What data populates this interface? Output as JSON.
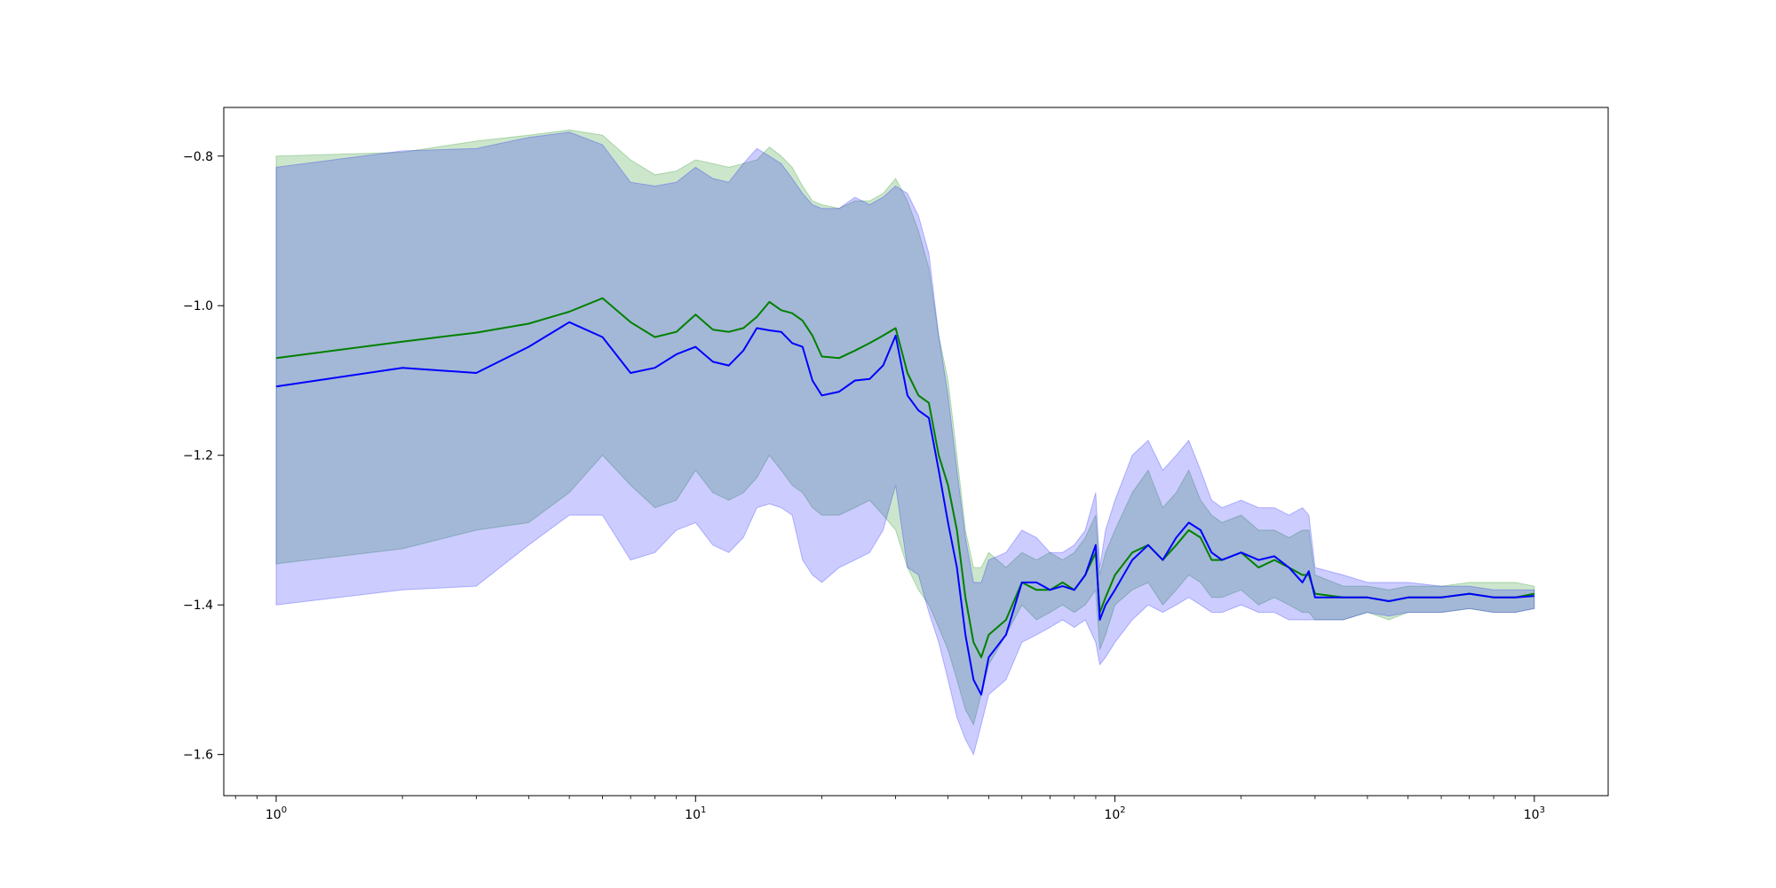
{
  "chart_data": {
    "type": "line",
    "title": "",
    "xlabel": "",
    "ylabel": "",
    "x_scale": "log",
    "xlim": [
      0.75,
      1500
    ],
    "ylim": [
      -1.655,
      -0.735
    ],
    "grid": false,
    "x_ticks": [
      {
        "value": 1,
        "base": "10",
        "exp": "0"
      },
      {
        "value": 10,
        "base": "10",
        "exp": "1"
      },
      {
        "value": 100,
        "base": "10",
        "exp": "2"
      },
      {
        "value": 1000,
        "base": "10",
        "exp": "3"
      }
    ],
    "y_ticks": [
      {
        "value": -0.8,
        "label": "−0.8"
      },
      {
        "value": -1.0,
        "label": "−1.0"
      },
      {
        "value": -1.2,
        "label": "−1.2"
      },
      {
        "value": -1.4,
        "label": "−1.4"
      },
      {
        "value": -1.6,
        "label": "−1.6"
      }
    ],
    "series": [
      {
        "color": "#008000",
        "band_color": "#008000",
        "band_opacity": 0.2,
        "x": [
          1,
          2,
          3,
          4,
          5,
          6,
          7,
          8,
          9,
          10,
          11,
          12,
          13,
          14,
          15,
          16,
          17,
          18,
          19,
          20,
          22,
          24,
          26,
          28,
          30,
          32,
          34,
          36,
          38,
          40,
          42,
          44,
          46,
          48,
          50,
          55,
          60,
          65,
          70,
          75,
          80,
          85,
          90,
          92,
          95,
          100,
          110,
          120,
          130,
          140,
          150,
          160,
          170,
          180,
          200,
          220,
          240,
          260,
          280,
          290,
          300,
          350,
          400,
          450,
          500,
          600,
          700,
          800,
          900,
          1000
        ],
        "y": [
          -1.07,
          -1.048,
          -1.036,
          -1.024,
          -1.008,
          -0.99,
          -1.022,
          -1.042,
          -1.035,
          -1.012,
          -1.032,
          -1.035,
          -1.03,
          -1.015,
          -0.995,
          -1.006,
          -1.01,
          -1.02,
          -1.04,
          -1.068,
          -1.07,
          -1.06,
          -1.05,
          -1.04,
          -1.03,
          -1.09,
          -1.12,
          -1.13,
          -1.2,
          -1.24,
          -1.3,
          -1.39,
          -1.45,
          -1.47,
          -1.44,
          -1.42,
          -1.37,
          -1.38,
          -1.38,
          -1.37,
          -1.38,
          -1.36,
          -1.33,
          -1.41,
          -1.39,
          -1.36,
          -1.33,
          -1.32,
          -1.34,
          -1.32,
          -1.3,
          -1.31,
          -1.34,
          -1.34,
          -1.33,
          -1.35,
          -1.34,
          -1.35,
          -1.36,
          -1.36,
          -1.385,
          -1.39,
          -1.39,
          -1.395,
          -1.39,
          -1.39,
          -1.385,
          -1.39,
          -1.39,
          -1.385
        ],
        "lower": [
          -1.345,
          -1.325,
          -1.3,
          -1.29,
          -1.25,
          -1.2,
          -1.24,
          -1.27,
          -1.26,
          -1.22,
          -1.25,
          -1.26,
          -1.25,
          -1.23,
          -1.2,
          -1.22,
          -1.24,
          -1.25,
          -1.27,
          -1.28,
          -1.28,
          -1.27,
          -1.26,
          -1.28,
          -1.3,
          -1.35,
          -1.38,
          -1.4,
          -1.43,
          -1.46,
          -1.5,
          -1.54,
          -1.56,
          -1.52,
          -1.48,
          -1.44,
          -1.4,
          -1.42,
          -1.41,
          -1.4,
          -1.41,
          -1.4,
          -1.38,
          -1.46,
          -1.44,
          -1.4,
          -1.38,
          -1.37,
          -1.4,
          -1.38,
          -1.36,
          -1.37,
          -1.39,
          -1.39,
          -1.38,
          -1.4,
          -1.39,
          -1.4,
          -1.41,
          -1.41,
          -1.42,
          -1.42,
          -1.41,
          -1.42,
          -1.41,
          -1.41,
          -1.405,
          -1.41,
          -1.41,
          -1.405
        ],
        "upper": [
          -0.8,
          -0.795,
          -0.78,
          -0.772,
          -0.765,
          -0.772,
          -0.805,
          -0.825,
          -0.82,
          -0.805,
          -0.81,
          -0.815,
          -0.81,
          -0.805,
          -0.788,
          -0.8,
          -0.815,
          -0.84,
          -0.86,
          -0.865,
          -0.87,
          -0.86,
          -0.86,
          -0.85,
          -0.83,
          -0.86,
          -0.9,
          -0.95,
          -1.04,
          -1.1,
          -1.2,
          -1.3,
          -1.35,
          -1.35,
          -1.33,
          -1.35,
          -1.33,
          -1.34,
          -1.33,
          -1.34,
          -1.33,
          -1.31,
          -1.28,
          -1.36,
          -1.33,
          -1.3,
          -1.25,
          -1.22,
          -1.27,
          -1.25,
          -1.22,
          -1.26,
          -1.28,
          -1.29,
          -1.28,
          -1.3,
          -1.3,
          -1.31,
          -1.3,
          -1.3,
          -1.36,
          -1.375,
          -1.375,
          -1.38,
          -1.375,
          -1.375,
          -1.37,
          -1.37,
          -1.37,
          -1.375
        ]
      },
      {
        "color": "#0000ff",
        "band_color": "#0000ff",
        "band_opacity": 0.2,
        "x": [
          1,
          2,
          3,
          4,
          5,
          6,
          7,
          8,
          9,
          10,
          11,
          12,
          13,
          14,
          15,
          16,
          17,
          18,
          19,
          20,
          22,
          24,
          26,
          28,
          30,
          32,
          34,
          36,
          38,
          40,
          42,
          44,
          46,
          48,
          50,
          55,
          60,
          65,
          70,
          75,
          80,
          85,
          90,
          92,
          95,
          100,
          110,
          120,
          130,
          140,
          150,
          160,
          170,
          180,
          200,
          220,
          240,
          260,
          280,
          290,
          300,
          350,
          400,
          450,
          500,
          600,
          700,
          800,
          900,
          1000
        ],
        "y": [
          -1.108,
          -1.083,
          -1.09,
          -1.055,
          -1.022,
          -1.042,
          -1.09,
          -1.083,
          -1.065,
          -1.055,
          -1.075,
          -1.08,
          -1.06,
          -1.03,
          -1.033,
          -1.035,
          -1.05,
          -1.055,
          -1.1,
          -1.12,
          -1.115,
          -1.1,
          -1.098,
          -1.08,
          -1.04,
          -1.12,
          -1.14,
          -1.15,
          -1.22,
          -1.29,
          -1.35,
          -1.44,
          -1.5,
          -1.52,
          -1.47,
          -1.44,
          -1.37,
          -1.37,
          -1.38,
          -1.375,
          -1.38,
          -1.36,
          -1.32,
          -1.42,
          -1.4,
          -1.38,
          -1.34,
          -1.32,
          -1.34,
          -1.31,
          -1.29,
          -1.3,
          -1.33,
          -1.34,
          -1.33,
          -1.34,
          -1.335,
          -1.35,
          -1.37,
          -1.355,
          -1.39,
          -1.39,
          -1.39,
          -1.395,
          -1.39,
          -1.39,
          -1.385,
          -1.39,
          -1.39,
          -1.388
        ],
        "lower": [
          -1.4,
          -1.38,
          -1.375,
          -1.32,
          -1.28,
          -1.28,
          -1.34,
          -1.33,
          -1.3,
          -1.29,
          -1.32,
          -1.33,
          -1.31,
          -1.27,
          -1.265,
          -1.27,
          -1.28,
          -1.34,
          -1.36,
          -1.37,
          -1.35,
          -1.34,
          -1.33,
          -1.3,
          -1.24,
          -1.35,
          -1.36,
          -1.41,
          -1.45,
          -1.5,
          -1.55,
          -1.58,
          -1.6,
          -1.56,
          -1.52,
          -1.5,
          -1.45,
          -1.44,
          -1.43,
          -1.42,
          -1.43,
          -1.42,
          -1.45,
          -1.48,
          -1.47,
          -1.45,
          -1.42,
          -1.4,
          -1.41,
          -1.4,
          -1.39,
          -1.4,
          -1.41,
          -1.41,
          -1.4,
          -1.41,
          -1.41,
          -1.42,
          -1.42,
          -1.42,
          -1.42,
          -1.42,
          -1.41,
          -1.415,
          -1.41,
          -1.41,
          -1.405,
          -1.41,
          -1.41,
          -1.405
        ],
        "upper": [
          -0.815,
          -0.793,
          -0.79,
          -0.775,
          -0.768,
          -0.785,
          -0.835,
          -0.84,
          -0.835,
          -0.815,
          -0.83,
          -0.835,
          -0.81,
          -0.79,
          -0.8,
          -0.81,
          -0.83,
          -0.85,
          -0.865,
          -0.87,
          -0.87,
          -0.855,
          -0.865,
          -0.855,
          -0.84,
          -0.85,
          -0.88,
          -0.93,
          -1.04,
          -1.12,
          -1.22,
          -1.31,
          -1.37,
          -1.37,
          -1.34,
          -1.33,
          -1.3,
          -1.31,
          -1.33,
          -1.33,
          -1.32,
          -1.3,
          -1.25,
          -1.35,
          -1.3,
          -1.26,
          -1.2,
          -1.18,
          -1.22,
          -1.2,
          -1.18,
          -1.22,
          -1.26,
          -1.27,
          -1.26,
          -1.27,
          -1.27,
          -1.28,
          -1.27,
          -1.28,
          -1.35,
          -1.36,
          -1.37,
          -1.37,
          -1.37,
          -1.375,
          -1.375,
          -1.38,
          -1.38,
          -1.38
        ]
      }
    ]
  }
}
